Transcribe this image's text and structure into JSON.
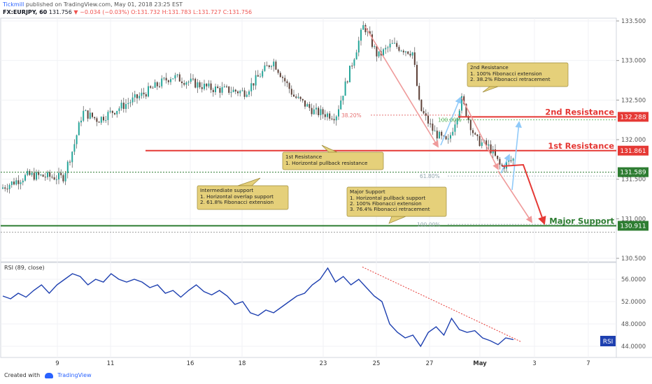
{
  "header": {
    "publisher": "Tickmill",
    "published_text": "published on TradingView.com, May 01, 2018 23:25 EST",
    "symbol": "FX:EURJPY, 60",
    "last": "131.756",
    "change": "−0.034 (−0.03%)",
    "ohlc": "O:131.732 H:131.783 L:131.727 C:131.756"
  },
  "footer": {
    "created_with": "Created with",
    "brand": "TradingView"
  },
  "price_axis": {
    "labels": [
      "133.500",
      "133.000",
      "132.500",
      "132.000",
      "131.500",
      "131.000",
      "130.500"
    ]
  },
  "time_axis": {
    "labels": [
      "9",
      "11",
      "16",
      "18",
      "23",
      "25",
      "27",
      "May",
      "3",
      "7"
    ]
  },
  "levels": [
    {
      "name": "2nd Resistance",
      "value": "132.288",
      "color": "#e53935"
    },
    {
      "name": "1st Resistance",
      "value": "131.861",
      "color": "#e53935"
    },
    {
      "name": "",
      "value": "131.589",
      "color": "#2e7d32"
    },
    {
      "name": "Major Support",
      "value": "130.911",
      "color": "#2e7d32"
    }
  ],
  "fib_labels": {
    "r382": "38.20%",
    "r100a": "100.00%",
    "r618": "61.80%",
    "r100b": "100.00%"
  },
  "annotations": [
    {
      "title": "2nd Resistance",
      "lines": [
        "1. 100% Fibonacci extension",
        "2. 38.2% Fibonacci retracement"
      ]
    },
    {
      "title": "1st Resistance",
      "lines": [
        "1. Horizontal pullback resistance"
      ]
    },
    {
      "title": "Intermediate support",
      "lines": [
        "1. Horizontal overlap support",
        "2. 61.8% Fibonacci extension"
      ]
    },
    {
      "title": "Major Support",
      "lines": [
        "1. Horizontal pullback support",
        "2. 100% Fibonacci extension",
        "3. 76.4% Fibonacci retracement"
      ]
    }
  ],
  "rsi": {
    "label": "RSI (89, close)",
    "tag": "RSI",
    "axis_labels": [
      "56.0000",
      "52.0000",
      "48.0000",
      "44.0000"
    ]
  },
  "chart_data": [
    {
      "type": "line",
      "title": "FX:EURJPY, 60",
      "y_range": [
        130.4,
        133.55
      ],
      "x": [
        0,
        4,
        8,
        9.5,
        11,
        13,
        16,
        18,
        21,
        23,
        24.4,
        25,
        25.8,
        26.8,
        27.3,
        28.2,
        28.9,
        29.6,
        30.1,
        30.4
      ],
      "values": [
        131.4,
        131.55,
        131.45,
        131.95,
        132.35,
        132.15,
        132.7,
        132.8,
        132.65,
        132.15,
        132.65,
        133.45,
        133.1,
        133.1,
        132.4,
        131.95,
        132.5,
        132.0,
        131.8,
        131.756
      ],
      "series_style": "candlestick (approx.)",
      "levels": [
        132.288,
        131.861,
        131.589,
        130.911
      ]
    },
    {
      "type": "line",
      "title": "RSI (89, close)",
      "y_range": [
        43.0,
        58.0
      ],
      "values": [
        53,
        52.5,
        53.5,
        52.8,
        54,
        55,
        53.5,
        55,
        56,
        57,
        56.5,
        55,
        56,
        55.5,
        57,
        56,
        55.5,
        56,
        55.5,
        54.5,
        55,
        53.5,
        54,
        52.8,
        54,
        55,
        53.8,
        53.2,
        54,
        53,
        51.5,
        52,
        50,
        49.5,
        50.5,
        50,
        51,
        52,
        53,
        53.5,
        55,
        56,
        58,
        55.5,
        56.5,
        55,
        56,
        54.5,
        53,
        52,
        48,
        46.5,
        45.5,
        46,
        44,
        46.5,
        47.5,
        46,
        49,
        47,
        46.5,
        46.8,
        45.5,
        45,
        44.3,
        45.5,
        45.2
      ]
    }
  ]
}
